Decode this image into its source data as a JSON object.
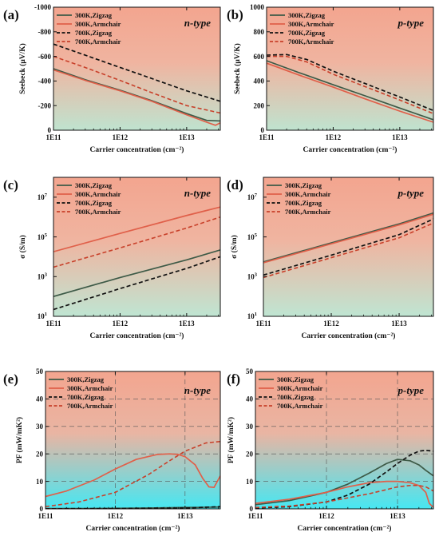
{
  "colors": {
    "zig300": "#3d5a47",
    "arm300": "#e0604a",
    "zig700": "#111111",
    "arm700": "#c8402a",
    "bg_top": "#f3a58f",
    "bg_bottom_ab": "#bfe3cf",
    "bg_bottom_cd": "#bfe5d2",
    "bg_bottom_ef": "#46e7f2"
  },
  "legend": [
    "300K,Zigzag",
    "300K,Armchair",
    "700K,Zigzag",
    "700K,Armchair"
  ],
  "chart_data": [
    {
      "panel_label": "(a)",
      "type_label": "n-type",
      "type_prefix": "n",
      "type_suffix": "-type",
      "type": "line",
      "xlabel": "Carrier concentration (cm⁻²)",
      "ylabel": "Seebeck (μV/K)",
      "xscale": "log",
      "yscale": "linear",
      "xlim": [
        100000000000.0,
        32000000000000.0
      ],
      "ylim": [
        -1000,
        0
      ],
      "xticks": [
        {
          "v": 100000000000.0,
          "label": "1E11"
        },
        {
          "v": 1000000000000.0,
          "label": "1E12"
        },
        {
          "v": 10000000000000.0,
          "label": "1E13"
        }
      ],
      "yticks": [
        {
          "v": -1000,
          "label": "-1000"
        },
        {
          "v": -800,
          "label": "-800"
        },
        {
          "v": -600,
          "label": "-600"
        },
        {
          "v": -400,
          "label": "-400"
        },
        {
          "v": -200,
          "label": "-200"
        },
        {
          "v": 0,
          "label": "0"
        }
      ],
      "grid": false,
      "series": [
        {
          "name": "300K,Zigzag",
          "style": "zig300",
          "x": [
            100000000000.0,
            300000000000.0,
            1000000000000.0,
            3000000000000.0,
            10000000000000.0,
            20000000000000.0,
            32000000000000.0
          ],
          "y": [
            -500,
            -410,
            -325,
            -240,
            -135,
            -80,
            -75
          ]
        },
        {
          "name": "300K,Armchair",
          "style": "arm300",
          "x": [
            100000000000.0,
            300000000000.0,
            1000000000000.0,
            3000000000000.0,
            10000000000000.0,
            20000000000000.0,
            27000000000000.0,
            32000000000000.0
          ],
          "y": [
            -490,
            -405,
            -320,
            -235,
            -125,
            -65,
            -40,
            -60
          ]
        },
        {
          "name": "700K,Zigzag",
          "style": "zig700",
          "x": [
            100000000000.0,
            300000000000.0,
            1000000000000.0,
            3000000000000.0,
            10000000000000.0,
            32000000000000.0
          ],
          "y": [
            -700,
            -610,
            -510,
            -420,
            -320,
            -235
          ]
        },
        {
          "name": "700K,Armchair",
          "style": "arm700",
          "x": [
            100000000000.0,
            300000000000.0,
            1000000000000.0,
            3000000000000.0,
            10000000000000.0,
            32000000000000.0
          ],
          "y": [
            -600,
            -510,
            -405,
            -305,
            -200,
            -140
          ]
        }
      ]
    },
    {
      "panel_label": "(b)",
      "type_label": "p-type",
      "type_prefix": "p",
      "type_suffix": "-type",
      "type": "line",
      "xlabel": "Carrier concentration (cm⁻²)",
      "ylabel": "Seebeck  (μV/K)",
      "xscale": "log",
      "yscale": "linear",
      "xlim": [
        100000000000.0,
        32000000000000.0
      ],
      "ylim": [
        0,
        1000
      ],
      "xticks": [
        {
          "v": 100000000000.0,
          "label": "1E11"
        },
        {
          "v": 1000000000000.0,
          "label": "1E12"
        },
        {
          "v": 10000000000000.0,
          "label": "1E13"
        }
      ],
      "yticks": [
        {
          "v": 0,
          "label": "0"
        },
        {
          "v": 200,
          "label": "200"
        },
        {
          "v": 400,
          "label": "400"
        },
        {
          "v": 600,
          "label": "600"
        },
        {
          "v": 800,
          "label": "800"
        },
        {
          "v": 1000,
          "label": "1000"
        }
      ],
      "grid": false,
      "series": [
        {
          "name": "300K,Zigzag",
          "style": "zig300",
          "x": [
            100000000000.0,
            300000000000.0,
            1000000000000.0,
            3000000000000.0,
            10000000000000.0,
            32000000000000.0
          ],
          "y": [
            565,
            470,
            370,
            280,
            180,
            85
          ]
        },
        {
          "name": "300K,Armchair",
          "style": "arm300",
          "x": [
            100000000000.0,
            300000000000.0,
            1000000000000.0,
            3000000000000.0,
            10000000000000.0,
            32000000000000.0
          ],
          "y": [
            545,
            450,
            350,
            255,
            155,
            65
          ]
        },
        {
          "name": "700K,Zigzag",
          "style": "zig700",
          "x": [
            100000000000.0,
            200000000000.0,
            400000000000.0,
            1000000000000.0,
            3000000000000.0,
            10000000000000.0,
            32000000000000.0
          ],
          "y": [
            610,
            615,
            575,
            480,
            380,
            270,
            160
          ]
        },
        {
          "name": "700K,Armchair",
          "style": "arm700",
          "x": [
            100000000000.0,
            200000000000.0,
            400000000000.0,
            1000000000000.0,
            3000000000000.0,
            10000000000000.0,
            32000000000000.0
          ],
          "y": [
            600,
            600,
            555,
            455,
            355,
            245,
            135
          ]
        }
      ]
    },
    {
      "panel_label": "(c)",
      "type_label": "n-type",
      "type_prefix": "n",
      "type_suffix": "-type",
      "type": "line",
      "xlabel": "Carrier concentration (cm⁻²)",
      "ylabel": "σ  (S/m)",
      "xscale": "log",
      "yscale": "log",
      "xlim": [
        100000000000.0,
        32000000000000.0
      ],
      "ylim": [
        10,
        100000000.0
      ],
      "xticks": [
        {
          "v": 100000000000.0,
          "label": "1E11"
        },
        {
          "v": 1000000000000.0,
          "label": "1E12"
        },
        {
          "v": 10000000000000.0,
          "label": "1E13"
        }
      ],
      "yticks": [
        {
          "v": 10,
          "label": "10",
          "sup": "1"
        },
        {
          "v": 1000,
          "label": "10",
          "sup": "3"
        },
        {
          "v": 100000,
          "label": "10",
          "sup": "5"
        },
        {
          "v": 10000000,
          "label": "10",
          "sup": "7"
        }
      ],
      "grid": false,
      "series": [
        {
          "name": "300K,Zigzag",
          "style": "zig300",
          "x": [
            100000000000.0,
            1000000000000.0,
            10000000000000.0,
            32000000000000.0
          ],
          "y": [
            100,
            900,
            7000,
            22000
          ]
        },
        {
          "name": "300K,Armchair",
          "style": "arm300",
          "x": [
            100000000000.0,
            1000000000000.0,
            10000000000000.0,
            32000000000000.0
          ],
          "y": [
            18000,
            150000,
            1200000,
            3200000
          ]
        },
        {
          "name": "700K,Zigzag",
          "style": "zig700",
          "x": [
            100000000000.0,
            1000000000000.0,
            10000000000000.0,
            32000000000000.0
          ],
          "y": [
            22,
            250,
            2600,
            10000
          ]
        },
        {
          "name": "700K,Armchair",
          "style": "arm700",
          "x": [
            100000000000.0,
            1000000000000.0,
            10000000000000.0,
            32000000000000.0
          ],
          "y": [
            3000,
            28000,
            280000,
            1000000
          ]
        }
      ]
    },
    {
      "panel_label": "(d)",
      "type_label": "p-type",
      "type_prefix": "p",
      "type_suffix": "-type",
      "type": "line",
      "xlabel": "Carrier concentration (cm⁻²)",
      "ylabel": "σ  (S/m)",
      "xscale": "log",
      "yscale": "log",
      "xlim": [
        100000000000.0,
        32000000000000.0
      ],
      "ylim": [
        10,
        100000000.0
      ],
      "xticks": [
        {
          "v": 100000000000.0,
          "label": "1E11"
        },
        {
          "v": 1000000000000.0,
          "label": "1E12"
        },
        {
          "v": 10000000000000.0,
          "label": "1E13"
        }
      ],
      "yticks": [
        {
          "v": 10,
          "label": "10",
          "sup": "1"
        },
        {
          "v": 1000,
          "label": "10",
          "sup": "3"
        },
        {
          "v": 100000,
          "label": "10",
          "sup": "5"
        },
        {
          "v": 10000000,
          "label": "10",
          "sup": "7"
        }
      ],
      "grid": false,
      "series": [
        {
          "name": "300K,Zigzag",
          "style": "zig300",
          "x": [
            100000000000.0,
            1000000000000.0,
            10000000000000.0,
            32000000000000.0
          ],
          "y": [
            5500,
            50000,
            450000,
            1600000
          ]
        },
        {
          "name": "300K,Armchair",
          "style": "arm300",
          "x": [
            100000000000.0,
            1000000000000.0,
            10000000000000.0,
            32000000000000.0
          ],
          "y": [
            5000,
            45000,
            400000,
            1400000
          ]
        },
        {
          "name": "700K,Zigzag",
          "style": "zig700",
          "x": [
            100000000000.0,
            1000000000000.0,
            10000000000000.0,
            32000000000000.0
          ],
          "y": [
            1200,
            12000,
            130000,
            800000
          ]
        },
        {
          "name": "700K,Armchair",
          "style": "arm700",
          "x": [
            100000000000.0,
            1000000000000.0,
            10000000000000.0,
            32000000000000.0
          ],
          "y": [
            900,
            9000,
            90000,
            500000
          ]
        }
      ]
    },
    {
      "panel_label": "(e)",
      "type_label": "n-type",
      "type_prefix": "n",
      "type_suffix": "-type",
      "type": "line",
      "xlabel": "Carrier concentration (cm⁻²)",
      "ylabel": "PF (mW/mK²)",
      "xscale": "log",
      "yscale": "linear",
      "xlim": [
        100000000000.0,
        32000000000000.0
      ],
      "ylim": [
        0,
        50
      ],
      "xticks": [
        {
          "v": 100000000000.0,
          "label": "1E11"
        },
        {
          "v": 1000000000000.0,
          "label": "1E12"
        },
        {
          "v": 10000000000000.0,
          "label": "1E13"
        }
      ],
      "yticks": [
        {
          "v": 0,
          "label": "0"
        },
        {
          "v": 10,
          "label": "10"
        },
        {
          "v": 20,
          "label": "20"
        },
        {
          "v": 30,
          "label": "30"
        },
        {
          "v": 40,
          "label": "40"
        },
        {
          "v": 50,
          "label": "50"
        }
      ],
      "grid": true,
      "series": [
        {
          "name": "300K,Zigzag",
          "style": "zig300",
          "x": [
            100000000000.0,
            300000000000.0,
            1000000000000.0,
            3000000000000.0,
            6000000000000.0,
            10000000000000.0,
            15000000000000.0,
            20000000000000.0,
            25000000000000.0,
            32000000000000.0
          ],
          "y": [
            0.1,
            0.1,
            0.2,
            0.3,
            0.4,
            0.5,
            0.5,
            0.6,
            0.6,
            0.7
          ]
        },
        {
          "name": "300K,Armchair",
          "style": "arm300",
          "x": [
            100000000000.0,
            200000000000.0,
            500000000000.0,
            1000000000000.0,
            2000000000000.0,
            4000000000000.0,
            6000000000000.0,
            8000000000000.0,
            10000000000000.0,
            14000000000000.0,
            18000000000000.0,
            22000000000000.0,
            26000000000000.0,
            32000000000000.0
          ],
          "y": [
            4.5,
            6.5,
            10.5,
            14.5,
            18,
            19.8,
            20,
            19.8,
            19,
            16,
            11,
            8,
            7.8,
            12
          ]
        },
        {
          "name": "700K,Zigzag",
          "style": "zig700",
          "x": [
            100000000000.0,
            1000000000000.0,
            10000000000000.0,
            32000000000000.0
          ],
          "y": [
            0.05,
            0.1,
            0.3,
            0.8
          ]
        },
        {
          "name": "700K,Armchair",
          "style": "arm700",
          "x": [
            100000000000.0,
            300000000000.0,
            1000000000000.0,
            3000000000000.0,
            6000000000000.0,
            10000000000000.0,
            20000000000000.0,
            32000000000000.0
          ],
          "y": [
            0.8,
            2.5,
            6,
            12.5,
            17.5,
            21,
            24,
            24.5
          ]
        }
      ]
    },
    {
      "panel_label": "(f)",
      "type_label": "p-type",
      "type_prefix": "p",
      "type_suffix": "-type",
      "type": "line",
      "xlabel": "Carrier concentration (cm⁻²)",
      "ylabel": "PF (mW/mK²)",
      "xscale": "log",
      "yscale": "linear",
      "xlim": [
        100000000000.0,
        32000000000000.0
      ],
      "ylim": [
        0,
        50
      ],
      "xticks": [
        {
          "v": 100000000000.0,
          "label": "1E11"
        },
        {
          "v": 1000000000000.0,
          "label": "1E12"
        },
        {
          "v": 10000000000000.0,
          "label": "1E13"
        }
      ],
      "yticks": [
        {
          "v": 0,
          "label": "0"
        },
        {
          "v": 10,
          "label": "10"
        },
        {
          "v": 20,
          "label": "20"
        },
        {
          "v": 30,
          "label": "30"
        },
        {
          "v": 40,
          "label": "40"
        },
        {
          "v": 50,
          "label": "50"
        }
      ],
      "grid": true,
      "series": [
        {
          "name": "300K,Zigzag",
          "style": "zig300",
          "x": [
            100000000000.0,
            300000000000.0,
            1000000000000.0,
            2000000000000.0,
            4000000000000.0,
            7000000000000.0,
            10000000000000.0,
            15000000000000.0,
            20000000000000.0,
            25000000000000.0,
            32000000000000.0
          ],
          "y": [
            1.5,
            3,
            6,
            9,
            13,
            16.5,
            18,
            17.5,
            16,
            14,
            12
          ]
        },
        {
          "name": "300K,Armchair",
          "style": "arm300",
          "x": [
            100000000000.0,
            300000000000.0,
            1000000000000.0,
            2000000000000.0,
            4000000000000.0,
            7000000000000.0,
            10000000000000.0,
            15000000000000.0,
            20000000000000.0,
            25000000000000.0,
            28000000000000.0,
            32000000000000.0
          ],
          "y": [
            2,
            3.5,
            6,
            8,
            9.5,
            10,
            10,
            9.5,
            8.5,
            6,
            2,
            0.5
          ]
        },
        {
          "name": "700K,Zigzag",
          "style": "zig700",
          "x": [
            100000000000.0,
            300000000000.0,
            1000000000000.0,
            2000000000000.0,
            4000000000000.0,
            7000000000000.0,
            10000000000000.0,
            15000000000000.0,
            20000000000000.0,
            25000000000000.0,
            32000000000000.0
          ],
          "y": [
            0.3,
            0.8,
            2.5,
            5,
            9,
            13.5,
            16.5,
            19.5,
            21,
            21.3,
            21
          ]
        },
        {
          "name": "700K,Armchair",
          "style": "arm700",
          "x": [
            100000000000.0,
            300000000000.0,
            1000000000000.0,
            2000000000000.0,
            4000000000000.0,
            7000000000000.0,
            10000000000000.0,
            15000000000000.0,
            20000000000000.0,
            25000000000000.0,
            32000000000000.0
          ],
          "y": [
            0.5,
            1,
            2.5,
            4,
            5.5,
            7,
            8,
            8.5,
            8.5,
            8,
            6.5
          ]
        }
      ]
    }
  ]
}
